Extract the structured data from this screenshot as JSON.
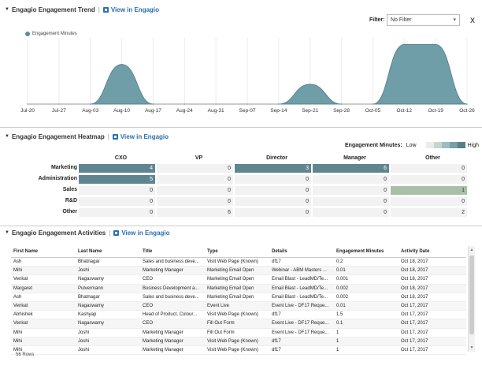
{
  "trend": {
    "title": "Engagio Engagement Trend",
    "view_link": "View in Engagio",
    "filter_label": "Filter:",
    "filter_value": "No Filter",
    "clear": "X",
    "legend": "Engagement Minutes",
    "colors": {
      "area": "#6f9ea8",
      "stroke": "#4f7f8a",
      "legend": "#5b8e9a"
    },
    "chart_data": {
      "type": "area",
      "x": [
        "Jul-20",
        "Jul-27",
        "Aug-03",
        "Aug-10",
        "Aug-17",
        "Aug-24",
        "Aug-31",
        "Sep-07",
        "Sep-14",
        "Sep-21",
        "Sep-28",
        "Oct-05",
        "Oct-12",
        "Oct-19",
        "Oct-26"
      ],
      "values": [
        0,
        0,
        0,
        6,
        0,
        0,
        0,
        0,
        0,
        3,
        0,
        0,
        9,
        9,
        0
      ],
      "ylim": [
        0,
        10
      ],
      "grid": true,
      "legend_position": "top-left"
    }
  },
  "heatmap": {
    "title": "Engagio Engagement Heatmap",
    "view_link": "View in Engagio",
    "legend_title": "Engagement Minutes:",
    "legend_low": "Low",
    "legend_high": "High",
    "legend_colors": [
      "#e8eeea",
      "#c7d6cc",
      "#9fbbbf",
      "#7a9ea6",
      "#5a7f88"
    ],
    "columns": [
      "CXO",
      "VP",
      "Director",
      "Manager",
      "Other"
    ],
    "rows": [
      {
        "label": "Marketing",
        "values": [
          "4",
          "0",
          "3",
          "6",
          "0"
        ],
        "colors": [
          "#5f8690",
          "#f2f2f2",
          "#5f8690",
          "#5f8690",
          "#f2f2f2"
        ]
      },
      {
        "label": "Administration",
        "values": [
          "5",
          "0",
          "0",
          "0",
          "0"
        ],
        "colors": [
          "#5f8690",
          "#f2f2f2",
          "#f2f2f2",
          "#f2f2f2",
          "#f2f2f2"
        ]
      },
      {
        "label": "Sales",
        "values": [
          "0",
          "0",
          "0",
          "0",
          "1"
        ],
        "colors": [
          "#f2f2f2",
          "#f2f2f2",
          "#f2f2f2",
          "#f2f2f2",
          "#a9bfa8"
        ]
      },
      {
        "label": "R&D",
        "values": [
          "0",
          "0",
          "0",
          "0",
          "0"
        ],
        "colors": [
          "#f2f2f2",
          "#f2f2f2",
          "#f2f2f2",
          "#f2f2f2",
          "#f2f2f2"
        ]
      },
      {
        "label": "Other",
        "values": [
          "0",
          "6",
          "0",
          "0",
          "2"
        ],
        "colors": [
          "#f2f2f2",
          "#f2f2f2",
          "#f2f2f2",
          "#f2f2f2",
          "#f2f2f2"
        ]
      }
    ]
  },
  "activities": {
    "title": "Engagio Engagement Activities",
    "view_link": "View in Engagio",
    "headers": [
      "First Name",
      "Last Name",
      "Title",
      "Type",
      "Details",
      "Engagement Minutes",
      "Activity Date"
    ],
    "rows": [
      [
        "Ash",
        "Bhatnagar",
        "Sales and business deve...",
        "Visit Web Page (Known)",
        "df17",
        "0.2",
        "Oct 18, 2017"
      ],
      [
        "Mihi",
        "Joshi",
        "Marketing Manager",
        "Marketing Email Open",
        "Webinar - ABM Masters ...",
        "0.01",
        "Oct 18, 2017"
      ],
      [
        "Venkat",
        "Nagaswamy",
        "CEO",
        "Marketing Email Open",
        "Email Blast - LeadMD/Te...",
        "0.001",
        "Oct 18, 2017"
      ],
      [
        "Margaret",
        "Pulvermann",
        "Business Development a...",
        "Marketing Email Open",
        "Email Blast - LeadMD/Te...",
        "0.002",
        "Oct 18, 2017"
      ],
      [
        "Ash",
        "Bhatnagar",
        "Sales and business deve...",
        "Marketing Email Open",
        "Email Blast - LeadMD/Te...",
        "0.002",
        "Oct 18, 2017"
      ],
      [
        "Venkat",
        "Nagaswamy",
        "CEO",
        "Event Live",
        "Event Live - DF17 Reque...",
        "0.01",
        "Oct 17, 2017"
      ],
      [
        "Abhishek",
        "Kashyap",
        "Head of Product, Colour...",
        "Visit Web Page (Known)",
        "df17",
        "1.5",
        "Oct 17, 2017"
      ],
      [
        "Venkat",
        "Nagaswamy",
        "CEO",
        "Fill Out Form",
        "Event Live - DF17 Reque...",
        "0.1",
        "Oct 17, 2017"
      ],
      [
        "Mihi",
        "Joshi",
        "Marketing Manager",
        "Fill Out Form",
        "Event Live - DF17 Reque...",
        "1",
        "Oct 17, 2017"
      ],
      [
        "Mihi",
        "Joshi",
        "Marketing Manager",
        "Visit Web Page (Known)",
        "df17",
        "1",
        "Oct 17, 2017"
      ],
      [
        "Mihi",
        "Joshi",
        "Marketing Manager",
        "Visit Web Page (Known)",
        "df17",
        "1",
        "Oct 17, 2017"
      ]
    ],
    "rows_label": "56 Rows"
  }
}
